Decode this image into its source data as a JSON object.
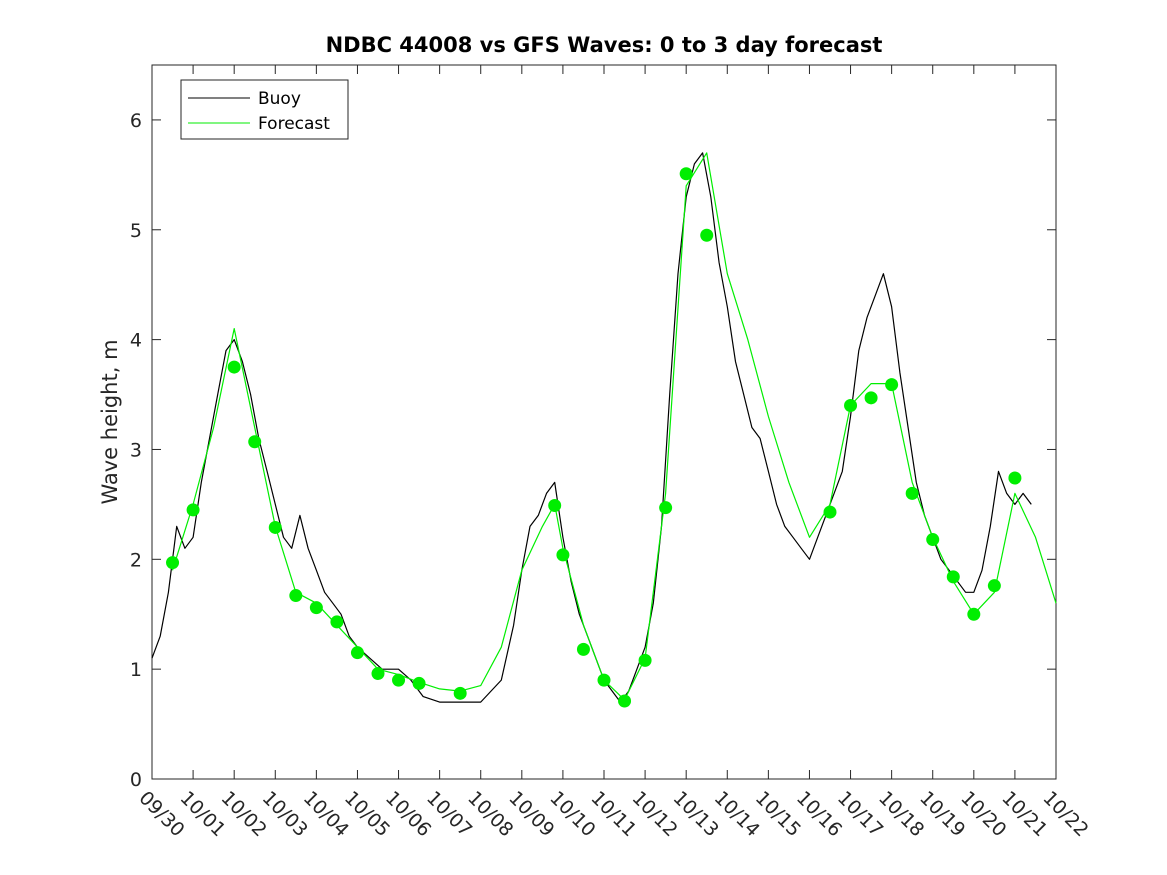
{
  "chart_data": {
    "type": "line",
    "title": "NDBC 44008 vs GFS Waves: 0 to 3 day forecast",
    "xlabel": "",
    "ylabel": "Wave height, m",
    "xlim": [
      0,
      22
    ],
    "ylim": [
      0,
      6.5
    ],
    "grid": false,
    "legend_position": "top-left",
    "x_tick_labels": [
      "09/30",
      "10/01",
      "10/02",
      "10/03",
      "10/04",
      "10/05",
      "10/06",
      "10/07",
      "10/08",
      "10/09",
      "10/10",
      "10/11",
      "10/12",
      "10/13",
      "10/14",
      "10/15",
      "10/16",
      "10/17",
      "10/18",
      "10/19",
      "10/20",
      "10/21",
      "10/22"
    ],
    "y_ticks": [
      0,
      1,
      2,
      3,
      4,
      5,
      6
    ],
    "y_tick_labels": [
      "0",
      "1",
      "2",
      "3",
      "4",
      "5",
      "6"
    ],
    "colors": {
      "buoy": "#000000",
      "forecast": "#00ee00",
      "axes": "#262626"
    },
    "series": [
      {
        "name": "Buoy",
        "x": [
          0,
          0.2,
          0.4,
          0.6,
          0.8,
          1.0,
          1.2,
          1.4,
          1.6,
          1.8,
          2.0,
          2.2,
          2.4,
          2.6,
          2.8,
          3.0,
          3.2,
          3.4,
          3.6,
          3.8,
          4.0,
          4.2,
          4.4,
          4.6,
          4.8,
          5.0,
          5.3,
          5.6,
          6.0,
          6.3,
          6.6,
          7.0,
          7.5,
          8.0,
          8.5,
          8.8,
          9.0,
          9.2,
          9.4,
          9.6,
          9.8,
          10.0,
          10.2,
          10.4,
          10.6,
          10.8,
          11.0,
          11.2,
          11.4,
          11.6,
          11.8,
          12.0,
          12.2,
          12.4,
          12.6,
          12.8,
          13.0,
          13.2,
          13.4,
          13.6,
          13.8,
          14.0,
          14.2,
          14.4,
          14.6,
          14.8,
          15.0,
          15.2,
          15.4,
          15.6,
          15.8,
          16.0,
          16.2,
          16.4,
          16.6,
          16.8,
          17.0,
          17.2,
          17.4,
          17.6,
          17.8,
          18.0,
          18.2,
          18.4,
          18.6,
          18.8,
          19.0,
          19.2,
          19.4,
          19.6,
          19.8,
          20.0,
          20.2,
          20.4,
          20.6,
          20.8,
          21.0,
          21.2,
          21.4
        ],
        "values": [
          1.1,
          1.3,
          1.7,
          2.3,
          2.1,
          2.2,
          2.7,
          3.1,
          3.5,
          3.9,
          4.0,
          3.8,
          3.5,
          3.1,
          2.8,
          2.5,
          2.2,
          2.1,
          2.4,
          2.1,
          1.9,
          1.7,
          1.6,
          1.5,
          1.3,
          1.2,
          1.1,
          1.0,
          1.0,
          0.9,
          0.75,
          0.7,
          0.7,
          0.7,
          0.9,
          1.4,
          1.9,
          2.3,
          2.4,
          2.6,
          2.7,
          2.2,
          1.8,
          1.5,
          1.3,
          1.1,
          0.9,
          0.8,
          0.7,
          0.8,
          1.0,
          1.2,
          1.6,
          2.3,
          3.5,
          4.6,
          5.3,
          5.6,
          5.7,
          5.3,
          4.7,
          4.3,
          3.8,
          3.5,
          3.2,
          3.1,
          2.8,
          2.5,
          2.3,
          2.2,
          2.1,
          2.0,
          2.2,
          2.4,
          2.6,
          2.8,
          3.3,
          3.9,
          4.2,
          4.4,
          4.6,
          4.3,
          3.7,
          3.2,
          2.7,
          2.4,
          2.2,
          2.0,
          1.9,
          1.8,
          1.7,
          1.7,
          1.9,
          2.3,
          2.8,
          2.6,
          2.5,
          2.6,
          2.5
        ]
      },
      {
        "name": "Forecast",
        "x": [
          0.5,
          1.0,
          1.5,
          2.0,
          2.5,
          3.0,
          3.5,
          4.0,
          4.5,
          5.0,
          5.5,
          6.0,
          6.5,
          7.0,
          7.5,
          8.0,
          8.5,
          9.0,
          9.5,
          9.8,
          10.0,
          10.5,
          11.0,
          11.5,
          12.0,
          12.5,
          13.0,
          13.5,
          14.0,
          14.5,
          15.0,
          15.5,
          16.0,
          16.5,
          17.0,
          17.5,
          18.0,
          18.5,
          19.0,
          19.5,
          20.0,
          20.5,
          21.0,
          21.5,
          22.0
        ],
        "values": [
          1.9,
          2.5,
          3.2,
          4.1,
          3.2,
          2.3,
          1.7,
          1.6,
          1.4,
          1.2,
          1.0,
          0.95,
          0.88,
          0.82,
          0.8,
          0.85,
          1.2,
          1.9,
          2.3,
          2.5,
          2.1,
          1.4,
          0.9,
          0.72,
          1.1,
          2.6,
          5.4,
          5.7,
          4.6,
          4.0,
          3.3,
          2.7,
          2.2,
          2.5,
          3.4,
          3.6,
          3.6,
          2.7,
          2.2,
          1.8,
          1.5,
          1.7,
          2.6,
          2.2,
          1.6
        ]
      }
    ],
    "markers": {
      "name": "Forecast points",
      "x": [
        0.5,
        1.0,
        2.0,
        2.5,
        3.0,
        3.5,
        4.0,
        4.5,
        5.0,
        5.5,
        6.0,
        6.5,
        7.5,
        9.8,
        10.0,
        10.5,
        11.0,
        11.5,
        12.0,
        12.5,
        13.0,
        13.5,
        16.5,
        17.0,
        17.5,
        18.0,
        18.5,
        19.0,
        19.5,
        20.0,
        20.5,
        21.0
      ],
      "values": [
        1.97,
        2.45,
        3.75,
        3.07,
        2.29,
        1.67,
        1.56,
        1.43,
        1.15,
        0.96,
        0.9,
        0.87,
        0.78,
        2.49,
        2.04,
        1.18,
        0.9,
        0.71,
        1.08,
        2.47,
        5.51,
        4.95,
        2.43,
        3.4,
        3.47,
        3.59,
        2.6,
        2.18,
        1.84,
        1.5,
        1.76,
        2.74
      ]
    },
    "legend": {
      "entries": [
        "Buoy",
        "Forecast"
      ]
    }
  }
}
